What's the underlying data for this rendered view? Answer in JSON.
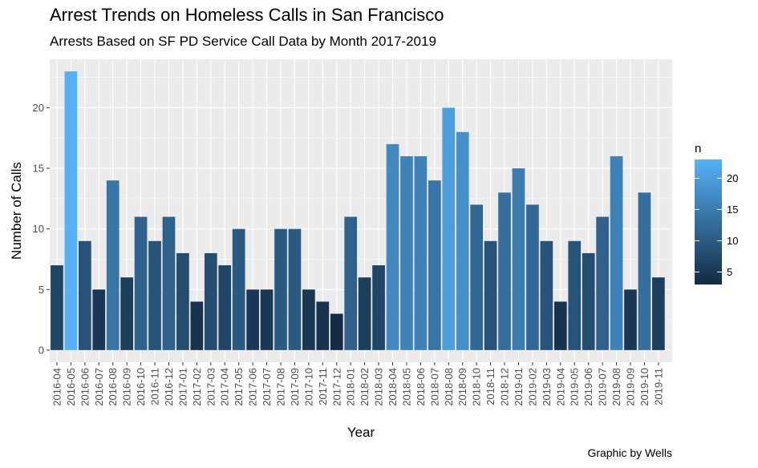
{
  "chart_data": {
    "type": "bar",
    "title": "Arrest Trends on Homeless Calls in San Francisco",
    "subtitle": "Arrests Based on SF PD Service Call Data by Month 2017-2019",
    "caption": "Graphic by Wells",
    "xlabel": "Year",
    "ylabel": "Number of Calls",
    "ylim": [
      -1,
      24
    ],
    "yticks": [
      0,
      5,
      10,
      15,
      20
    ],
    "grid": true,
    "legend": {
      "title": "n",
      "placement": "right",
      "ticks": [
        5,
        10,
        15,
        20
      ],
      "range": [
        3,
        23
      ],
      "colors": {
        "low": "#132B43",
        "high": "#56B1F7"
      }
    },
    "categories": [
      "2016-04",
      "2016-05",
      "2016-06",
      "2016-07",
      "2016-08",
      "2016-09",
      "2016-10",
      "2016-11",
      "2016-12",
      "2017-01",
      "2017-02",
      "2017-03",
      "2017-04",
      "2017-05",
      "2017-06",
      "2017-07",
      "2017-08",
      "2017-09",
      "2017-10",
      "2017-11",
      "2017-12",
      "2018-01",
      "2018-02",
      "2018-03",
      "2018-04",
      "2018-05",
      "2018-06",
      "2018-07",
      "2018-08",
      "2018-09",
      "2018-10",
      "2018-11",
      "2018-12",
      "2019-01",
      "2019-02",
      "2019-03",
      "2019-04",
      "2019-05",
      "2019-06",
      "2019-07",
      "2019-08",
      "2019-09",
      "2019-10",
      "2019-11"
    ],
    "values": [
      7,
      23,
      9,
      5,
      14,
      6,
      11,
      9,
      11,
      8,
      4,
      8,
      7,
      10,
      5,
      5,
      10,
      10,
      5,
      4,
      3,
      11,
      6,
      7,
      17,
      16,
      16,
      14,
      20,
      18,
      12,
      9,
      13,
      15,
      12,
      9,
      4,
      9,
      8,
      11,
      16,
      5,
      13,
      6
    ]
  }
}
